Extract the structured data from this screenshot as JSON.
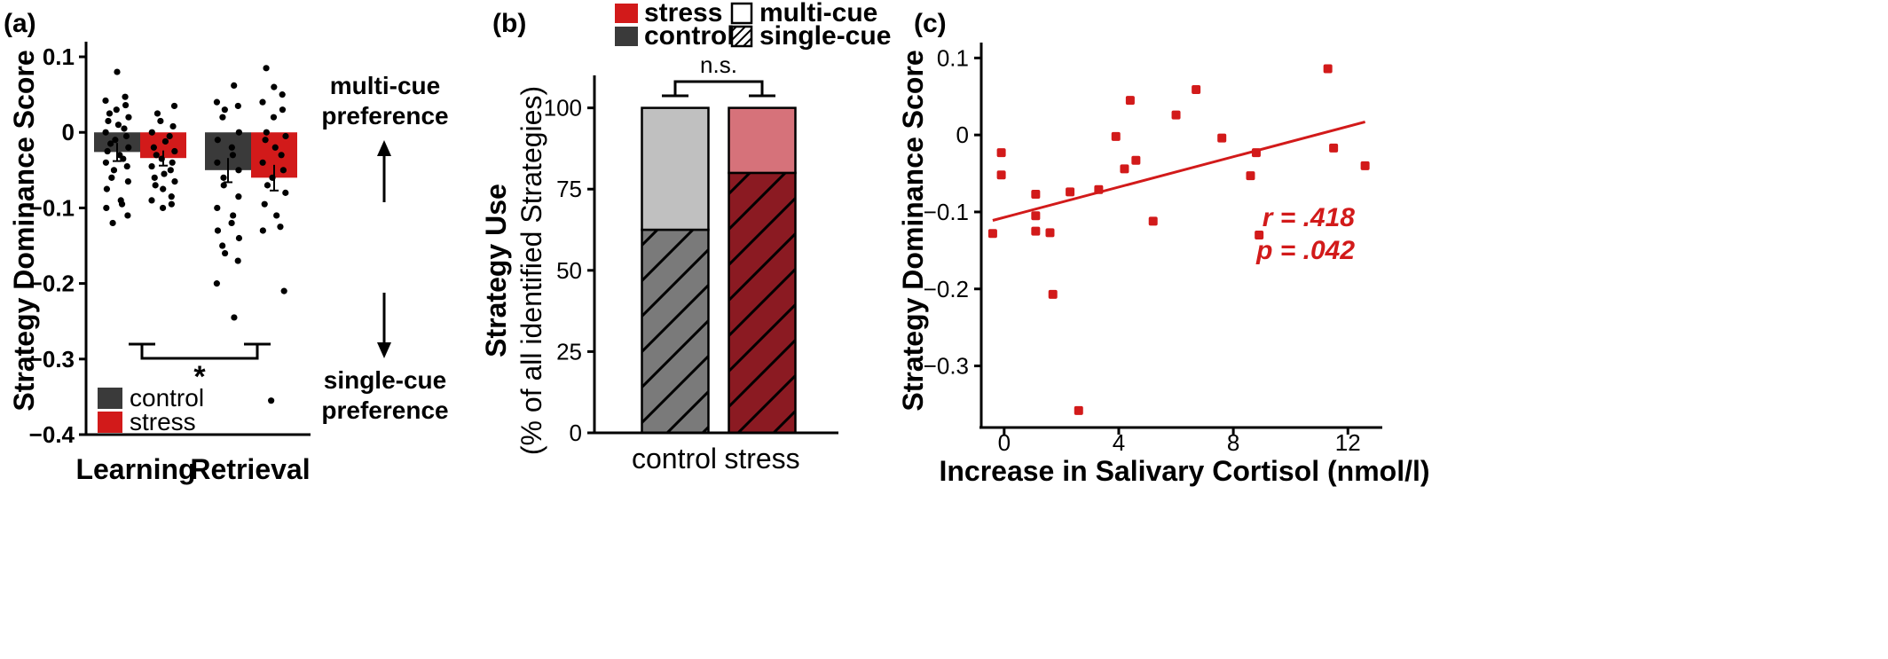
{
  "colors": {
    "control": "#3a3a3a",
    "stress": "#d21a1a",
    "control_light": "#c0c0c0",
    "stress_light": "#d6727a",
    "control_hatch": "#7a7a7a",
    "stress_hatch": "#8b1a22",
    "points_a": "#000000",
    "points_c": "#d21a1a"
  },
  "chart_data": [
    {
      "panel": "(a)",
      "type": "bar",
      "ylabel": "Strategy Dominance Score",
      "ylim": [
        -0.4,
        0.12
      ],
      "yticks": [
        0.1,
        0,
        -0.1,
        -0.2,
        -0.3,
        -0.4
      ],
      "ytick_labels": [
        "0.1",
        "0",
        "−0.1",
        "−0.2",
        "−0.3",
        "−0.4"
      ],
      "categories": [
        "Learning",
        "Retrieval"
      ],
      "series": [
        {
          "name": "control",
          "values": [
            -0.026,
            -0.05
          ],
          "errors": [
            0.012,
            0.016
          ]
        },
        {
          "name": "stress",
          "values": [
            -0.034,
            -0.06
          ],
          "errors": [
            0.01,
            0.017
          ]
        }
      ],
      "points": [
        {
          "category": "Learning",
          "series": "control",
          "y": [
            0.08,
            0.047,
            0.042,
            0.036,
            0.03,
            0.025,
            0.02,
            0.015,
            0.01,
            0.005,
            0.0,
            -0.005,
            -0.01,
            -0.015,
            -0.02,
            -0.025,
            -0.03,
            -0.035,
            -0.04,
            -0.045,
            -0.05,
            -0.06,
            -0.065,
            -0.075,
            -0.09,
            -0.095,
            -0.1,
            -0.11,
            -0.12
          ]
        },
        {
          "category": "Learning",
          "series": "stress",
          "y": [
            0.035,
            0.025,
            0.015,
            0.008,
            0.0,
            -0.005,
            -0.012,
            -0.02,
            -0.025,
            -0.03,
            -0.035,
            -0.04,
            -0.045,
            -0.05,
            -0.055,
            -0.06,
            -0.065,
            -0.07,
            -0.075,
            -0.085,
            -0.09,
            -0.095,
            -0.1
          ]
        },
        {
          "category": "Retrieval",
          "series": "control",
          "y": [
            0.062,
            0.04,
            0.035,
            0.03,
            0.02,
            0.0,
            -0.01,
            -0.02,
            -0.03,
            -0.04,
            -0.05,
            -0.06,
            -0.07,
            -0.085,
            -0.1,
            -0.11,
            -0.12,
            -0.13,
            -0.14,
            -0.15,
            -0.16,
            -0.17,
            -0.2,
            -0.245
          ]
        },
        {
          "category": "Retrieval",
          "series": "stress",
          "y": [
            0.085,
            0.06,
            0.05,
            0.04,
            0.03,
            0.02,
            0.0,
            -0.005,
            -0.01,
            -0.02,
            -0.03,
            -0.04,
            -0.05,
            -0.06,
            -0.07,
            -0.08,
            -0.095,
            -0.11,
            -0.125,
            -0.13,
            -0.21,
            -0.355
          ]
        }
      ],
      "significance": "*",
      "legend": [
        "control",
        "stress"
      ],
      "legend_position": "bottom-left",
      "side_annotations": {
        "top": [
          "multi-cue",
          "preference"
        ],
        "bottom": [
          "single-cue",
          "preference"
        ]
      }
    },
    {
      "panel": "(b)",
      "type": "bar",
      "stacked": true,
      "ylabel_lines": [
        "Strategy Use",
        "(% of all identified Strategies)"
      ],
      "ylim": [
        0,
        110
      ],
      "yticks": [
        0,
        25,
        50,
        75,
        100
      ],
      "ytick_labels": [
        "0",
        "25",
        "50",
        "75",
        "100"
      ],
      "categories": [
        "control",
        "stress"
      ],
      "series": [
        {
          "name": "single-cue",
          "values": [
            62.5,
            80
          ]
        },
        {
          "name": "multi-cue",
          "values": [
            37.5,
            20
          ]
        }
      ],
      "significance": "n.s.",
      "legend": [
        "stress",
        "multi-cue",
        "control",
        "single-cue"
      ],
      "legend_position": "top"
    },
    {
      "panel": "(c)",
      "type": "scatter",
      "xlabel": "Increase in Salivary Cortisol (nmol/l)",
      "ylabel": "Strategy Dominance Score",
      "xlim": [
        -0.8,
        13.2
      ],
      "ylim": [
        -0.38,
        0.12
      ],
      "xticks": [
        0,
        4,
        8,
        12
      ],
      "xtick_labels": [
        "0",
        "4",
        "8",
        "12"
      ],
      "yticks": [
        0.1,
        0,
        -0.1,
        -0.2,
        -0.3
      ],
      "ytick_labels": [
        "0.1",
        "0",
        "−0.1",
        "−0.2",
        "−0.3"
      ],
      "x": [
        -0.4,
        -0.1,
        -0.1,
        1.1,
        1.1,
        1.1,
        1.6,
        1.7,
        2.3,
        2.6,
        3.3,
        3.9,
        4.2,
        4.4,
        4.6,
        5.2,
        6.0,
        6.7,
        7.6,
        8.6,
        8.8,
        8.9,
        11.3,
        11.5,
        12.6
      ],
      "y": [
        -0.128,
        -0.023,
        -0.052,
        -0.077,
        -0.105,
        -0.125,
        -0.127,
        -0.207,
        -0.074,
        -0.358,
        -0.071,
        -0.002,
        -0.044,
        0.045,
        -0.033,
        -0.112,
        0.026,
        0.059,
        -0.004,
        -0.053,
        -0.023,
        -0.13,
        0.086,
        -0.017,
        -0.04
      ],
      "regression": {
        "x": [
          -0.4,
          12.6
        ],
        "y": [
          -0.111,
          0.017
        ]
      },
      "stat_r": "r = .418",
      "stat_p": "p = .042"
    }
  ]
}
